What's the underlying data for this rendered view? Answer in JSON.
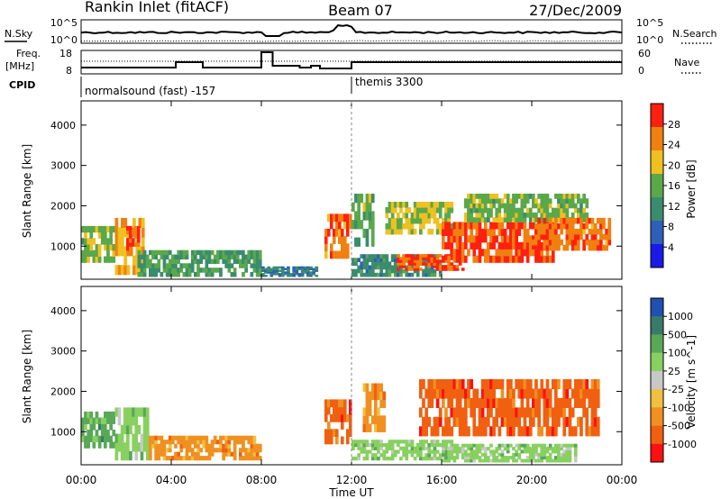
{
  "header": {
    "station": "Rankin Inlet (fitACF)",
    "beam": "Beam 07",
    "date": "27/Dec/2009"
  },
  "nsky_panel": {
    "left_label": "N.Sky",
    "right_label": "N.Search",
    "left_ticks": [
      "10^5",
      "10^0"
    ],
    "right_ticks": [
      "10^5",
      "10^0"
    ]
  },
  "freq_panel": {
    "left_label_1": "Freq.",
    "left_label_2": "[MHz]",
    "right_label": "Nave",
    "left_ticks": [
      "18",
      "8"
    ],
    "right_ticks": [
      "60",
      "0"
    ]
  },
  "cpid": {
    "label": "CPID",
    "segments": [
      {
        "text": "normalsound (fast) -157"
      },
      {
        "text": "themis 3300"
      }
    ]
  },
  "chart_data": [
    {
      "type": "heatmap",
      "title": "",
      "xlabel": "Time UT",
      "ylabel": "Slant Range [km]",
      "x_ticks": [
        "00:00",
        "04:00",
        "08:00",
        "12:00",
        "16:00",
        "20:00",
        "00:00"
      ],
      "y_ticks": [
        "1000",
        "2000",
        "3000",
        "4000"
      ],
      "xlim": [
        0,
        24
      ],
      "ylim": [
        180,
        4600
      ],
      "colorbar": {
        "label": "Power [dB]",
        "ticks": [
          "4",
          "8",
          "12",
          "16",
          "20",
          "24",
          "28"
        ],
        "range": [
          0,
          30
        ],
        "colors": [
          "#1a1ae6",
          "#2f5fb8",
          "#3b8c6e",
          "#5aa84a",
          "#f0c020",
          "#f08010",
          "#ff2010"
        ]
      },
      "regions": [
        {
          "t0": 0.0,
          "t1": 1.5,
          "r0": 600,
          "r1": 1500,
          "level": 16
        },
        {
          "t0": 1.5,
          "t1": 2.8,
          "r0": 300,
          "r1": 1700,
          "level": 22
        },
        {
          "t0": 2.0,
          "t1": 2.6,
          "r0": 900,
          "r1": 1500,
          "level": 28
        },
        {
          "t0": 2.5,
          "t1": 8.0,
          "r0": 250,
          "r1": 900,
          "level": 12
        },
        {
          "t0": 8.0,
          "t1": 10.5,
          "r0": 250,
          "r1": 500,
          "level": 8
        },
        {
          "t0": 10.8,
          "t1": 12.0,
          "r0": 700,
          "r1": 1800,
          "level": 26
        },
        {
          "t0": 12.0,
          "t1": 13.0,
          "r0": 1000,
          "r1": 2300,
          "level": 14
        },
        {
          "t0": 12.0,
          "t1": 16.0,
          "r0": 250,
          "r1": 800,
          "level": 10
        },
        {
          "t0": 13.5,
          "t1": 16.5,
          "r0": 1300,
          "r1": 2100,
          "level": 18
        },
        {
          "t0": 14.0,
          "t1": 17.0,
          "r0": 400,
          "r1": 800,
          "level": 28
        },
        {
          "t0": 16.0,
          "t1": 21.0,
          "r0": 600,
          "r1": 1600,
          "level": 28
        },
        {
          "t0": 17.0,
          "t1": 22.5,
          "r0": 1600,
          "r1": 2300,
          "level": 16
        },
        {
          "t0": 20.0,
          "t1": 23.5,
          "r0": 900,
          "r1": 1700,
          "level": 26
        }
      ]
    },
    {
      "type": "heatmap",
      "title": "",
      "xlabel": "Time UT",
      "ylabel": "Slant Range [km]",
      "x_ticks": [
        "00:00",
        "04:00",
        "08:00",
        "12:00",
        "16:00",
        "20:00",
        "00:00"
      ],
      "y_ticks": [
        "1000",
        "2000",
        "3000",
        "4000"
      ],
      "xlim": [
        0,
        24
      ],
      "ylim": [
        180,
        4600
      ],
      "colorbar": {
        "label": "Velocity [m s^-1]",
        "ticks": [
          "1000",
          "500",
          "100",
          "25",
          "-25",
          "-100",
          "-500",
          "-1000"
        ],
        "colors": [
          "#2050b0",
          "#3a7a6a",
          "#58a858",
          "#88d060",
          "#c8c8c8",
          "#f0c040",
          "#f09020",
          "#f06010",
          "#ff1010"
        ]
      },
      "regions": [
        {
          "t0": 0.0,
          "t1": 1.5,
          "r0": 600,
          "r1": 1500,
          "level": 2
        },
        {
          "t0": 1.5,
          "t1": 3.0,
          "r0": 300,
          "r1": 1600,
          "level": 3
        },
        {
          "t0": 3.0,
          "t1": 8.0,
          "r0": 300,
          "r1": 900,
          "level": 6
        },
        {
          "t0": 10.8,
          "t1": 12.0,
          "r0": 700,
          "r1": 1800,
          "level": 7
        },
        {
          "t0": 12.0,
          "t1": 16.5,
          "r0": 300,
          "r1": 800,
          "level": 3
        },
        {
          "t0": 12.5,
          "t1": 13.5,
          "r0": 1000,
          "r1": 2200,
          "level": 6
        },
        {
          "t0": 15.0,
          "t1": 23.0,
          "r0": 900,
          "r1": 2300,
          "level": 7
        },
        {
          "t0": 16.0,
          "t1": 22.0,
          "r0": 250,
          "r1": 700,
          "level": 3
        }
      ]
    }
  ]
}
